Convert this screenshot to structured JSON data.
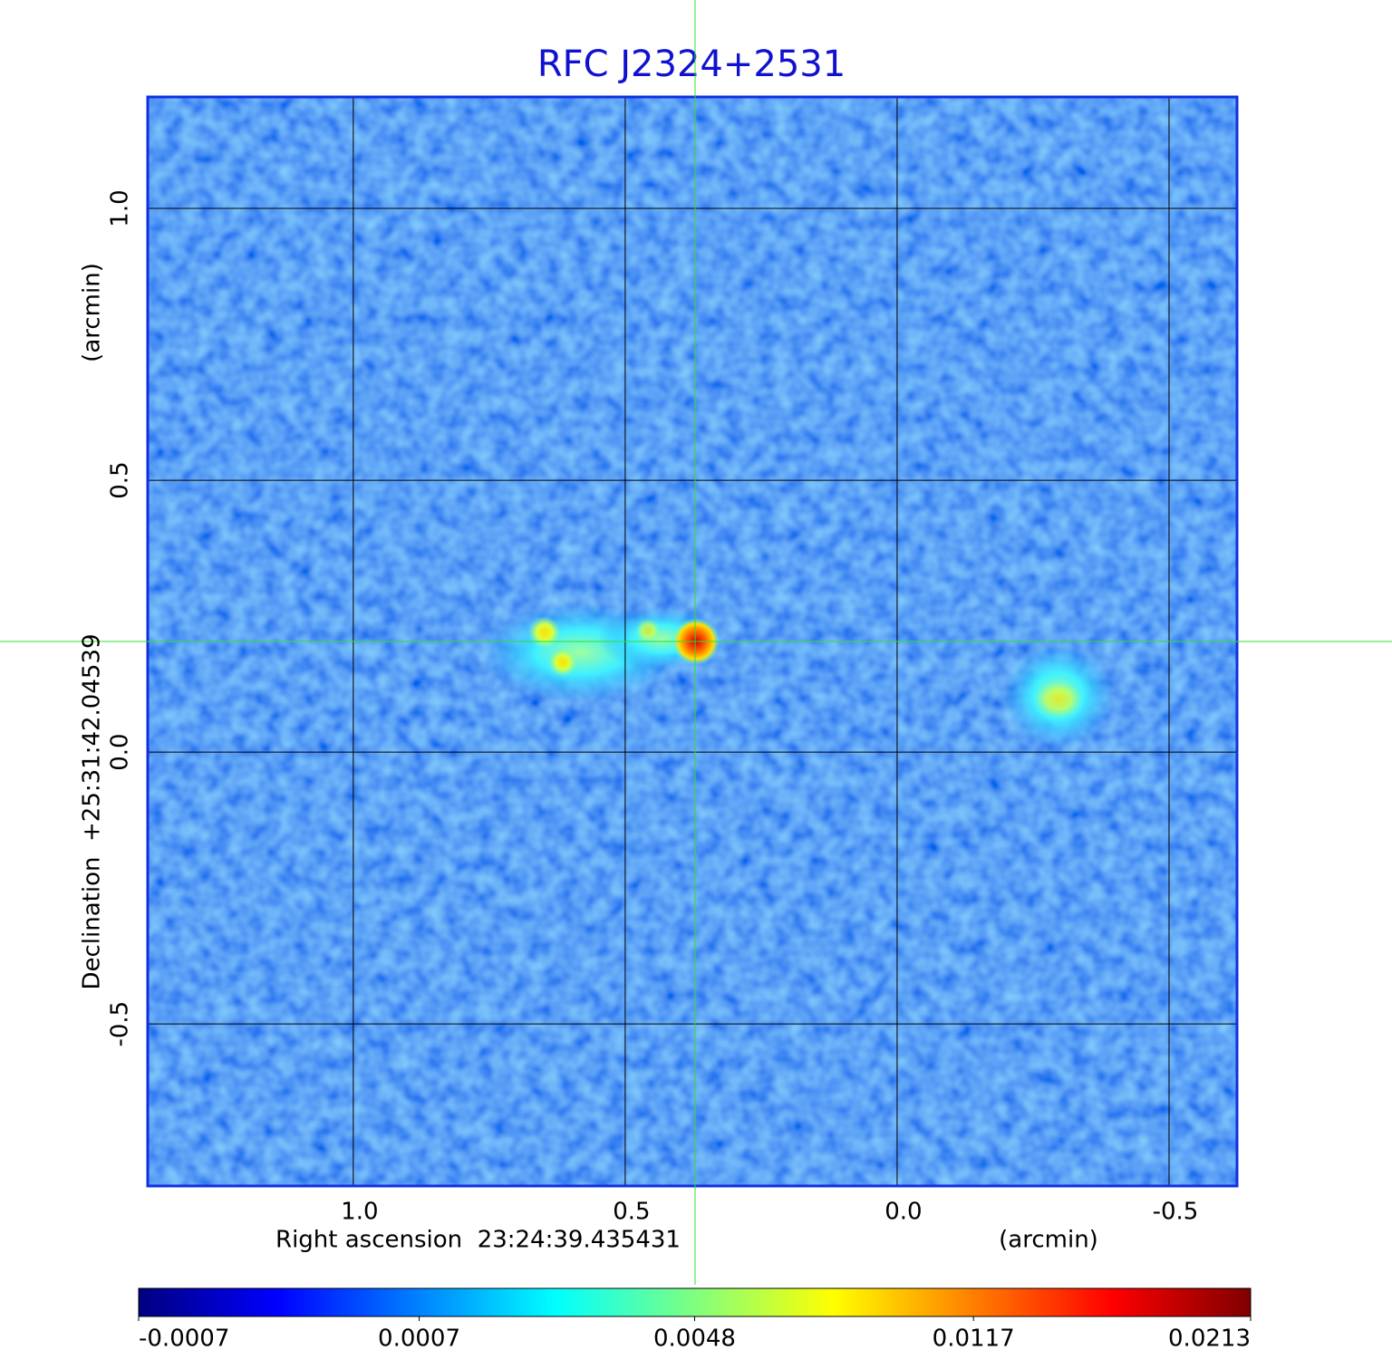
{
  "chart_data": {
    "type": "image",
    "title": "RFC J2324+2531",
    "x_label": "Right ascension  23:24:39.435431",
    "x_unit": "(arcmin)",
    "y_label": "Declination  +25:31:42.04539",
    "y_unit": "(arcmin)",
    "xlim": [
      1.378,
      -0.625
    ],
    "ylim": [
      -0.798,
      1.205
    ],
    "xticks": [
      {
        "value": 1,
        "label": "1.0"
      },
      0.5,
      {
        "value": 0,
        "label": "0.0"
      },
      -0.5
    ],
    "yticks": [
      {
        "value": 1,
        "label": "1.0"
      },
      0.5,
      {
        "value": 0,
        "label": "0.0"
      },
      -0.5
    ],
    "grid": true,
    "colorbar": {
      "clim": [
        -0.0007,
        0.0213
      ],
      "scale": "sqrt",
      "colormap": "jet",
      "ticks": [
        -0.0007,
        0.0007,
        0.0048,
        0.0117,
        0.0213
      ]
    }
  }
}
